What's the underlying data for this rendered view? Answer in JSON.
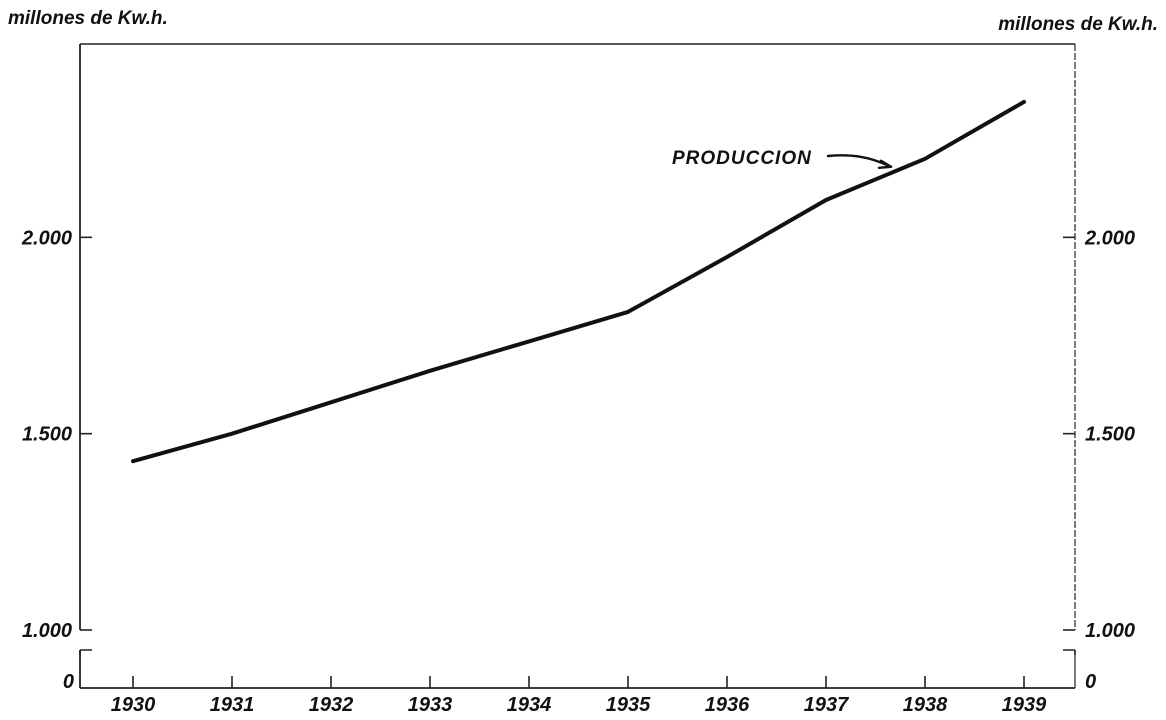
{
  "chart_data": {
    "type": "line",
    "title": "",
    "ylabel_left": "millones de Kw.h.",
    "ylabel_right": "millones de Kw.h.",
    "x": [
      1930,
      1931,
      1932,
      1933,
      1934,
      1935,
      1936,
      1937,
      1938,
      1939
    ],
    "x_tick_labels": [
      "1930",
      "1931",
      "1932",
      "1933",
      "1934",
      "1935",
      "1936",
      "1937",
      "1938",
      "1939"
    ],
    "y_ticks": [
      1000,
      1500,
      2000
    ],
    "y_tick_labels": [
      "1.000",
      "1.500",
      "2.000"
    ],
    "y_zero_label": "0",
    "ylim": [
      1000,
      2500
    ],
    "axis_break": true,
    "grid": false,
    "series": [
      {
        "name": "PRODUCCION",
        "values": [
          1430,
          1500,
          1580,
          1660,
          1735,
          1810,
          1950,
          2095,
          2200,
          2345
        ]
      }
    ],
    "annotations": [
      {
        "text": "PRODUCCION",
        "points_to": [
          1938,
          2200
        ]
      }
    ],
    "colors": {
      "line": "#111111",
      "axis": "#222222",
      "background": "#ffffff"
    }
  }
}
